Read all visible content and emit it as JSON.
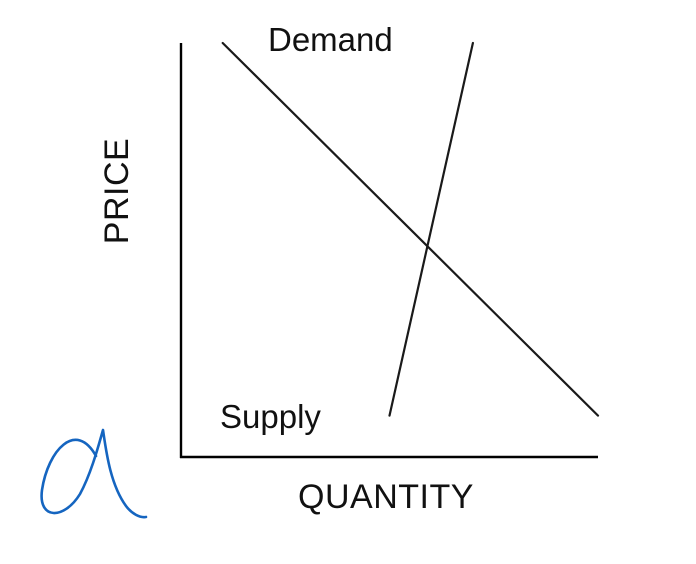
{
  "chart_data": {
    "type": "line",
    "title": "",
    "xlabel": "QUANTITY",
    "ylabel": "PRICE",
    "xlim": [
      0,
      10
    ],
    "ylim": [
      0,
      10
    ],
    "grid": false,
    "legend": "none",
    "series": [
      {
        "name": "Demand",
        "color": "#1a1a1a",
        "x": [
          1.0,
          10.0
        ],
        "y": [
          10.0,
          1.0
        ]
      },
      {
        "name": "Supply",
        "color": "#1a1a1a",
        "x": [
          5.0,
          7.0
        ],
        "y": [
          1.0,
          10.0
        ]
      }
    ]
  },
  "annotation": {
    "text": "a",
    "style": "handwritten",
    "color": "#1565c0"
  }
}
